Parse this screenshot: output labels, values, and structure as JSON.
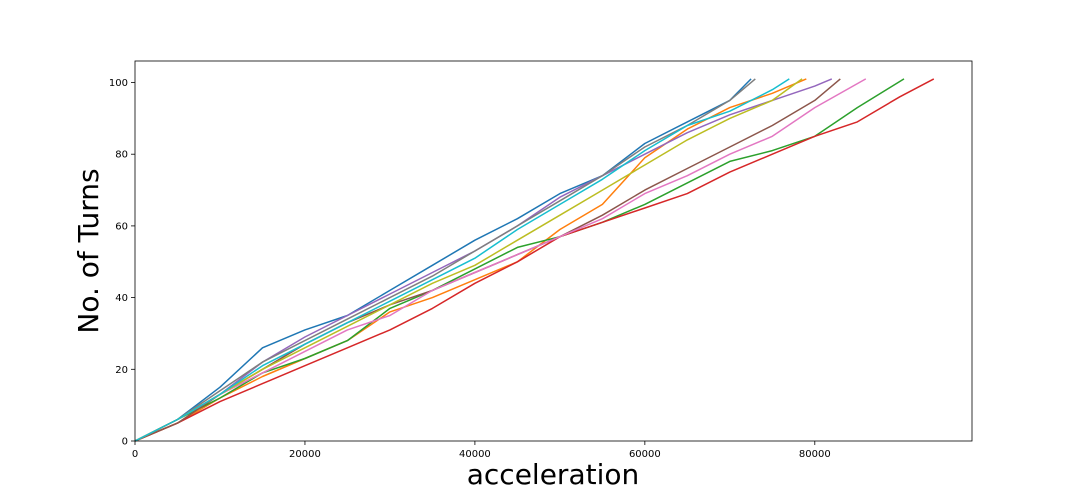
{
  "chart_data": {
    "type": "line",
    "title": "",
    "xlabel": "acceleration",
    "ylabel": "No. of Turns",
    "xlim": [
      0,
      98500
    ],
    "ylim": [
      0,
      106
    ],
    "x_ticks": [
      0,
      20000,
      40000,
      60000,
      80000
    ],
    "x_tick_labels": [
      "0",
      "20000",
      "40000",
      "60000",
      "80000"
    ],
    "y_ticks": [
      0,
      20,
      40,
      60,
      80,
      100
    ],
    "y_tick_labels": [
      "0",
      "20",
      "40",
      "60",
      "80",
      "100"
    ],
    "grid": false,
    "legend": "none",
    "series": [
      {
        "color": "#1f77b4",
        "points": [
          [
            0,
            0
          ],
          [
            5000,
            6
          ],
          [
            10000,
            15
          ],
          [
            15000,
            26
          ],
          [
            20000,
            31
          ],
          [
            25000,
            35
          ],
          [
            30000,
            42
          ],
          [
            35000,
            49
          ],
          [
            40000,
            56
          ],
          [
            45000,
            62
          ],
          [
            50000,
            69
          ],
          [
            55000,
            74
          ],
          [
            60000,
            83
          ],
          [
            65000,
            89
          ],
          [
            70000,
            95
          ],
          [
            72500,
            101
          ]
        ]
      },
      {
        "color": "#ff7f0e",
        "points": [
          [
            0,
            0
          ],
          [
            5000,
            5
          ],
          [
            10000,
            12
          ],
          [
            15000,
            18
          ],
          [
            20000,
            23
          ],
          [
            25000,
            28
          ],
          [
            30000,
            36
          ],
          [
            35000,
            40
          ],
          [
            40000,
            45
          ],
          [
            45000,
            50
          ],
          [
            50000,
            59
          ],
          [
            55000,
            66
          ],
          [
            60000,
            79
          ],
          [
            65000,
            87
          ],
          [
            70000,
            93
          ],
          [
            75000,
            97
          ],
          [
            79000,
            101
          ]
        ]
      },
      {
        "color": "#2ca02c",
        "points": [
          [
            0,
            0
          ],
          [
            5000,
            6
          ],
          [
            10000,
            12
          ],
          [
            15000,
            19
          ],
          [
            20000,
            23
          ],
          [
            25000,
            28
          ],
          [
            30000,
            37
          ],
          [
            35000,
            42
          ],
          [
            40000,
            48
          ],
          [
            45000,
            54
          ],
          [
            50000,
            57
          ],
          [
            55000,
            61
          ],
          [
            60000,
            66
          ],
          [
            65000,
            72
          ],
          [
            70000,
            78
          ],
          [
            75000,
            81
          ],
          [
            80000,
            85
          ],
          [
            85000,
            93
          ],
          [
            90500,
            101
          ]
        ]
      },
      {
        "color": "#d62728",
        "points": [
          [
            0,
            0
          ],
          [
            5000,
            5
          ],
          [
            10000,
            11
          ],
          [
            15000,
            16
          ],
          [
            20000,
            21
          ],
          [
            25000,
            26
          ],
          [
            30000,
            31
          ],
          [
            35000,
            37
          ],
          [
            40000,
            44
          ],
          [
            45000,
            50
          ],
          [
            50000,
            57
          ],
          [
            55000,
            61
          ],
          [
            60000,
            65
          ],
          [
            65000,
            69
          ],
          [
            70000,
            75
          ],
          [
            75000,
            80
          ],
          [
            80000,
            85
          ],
          [
            85000,
            89
          ],
          [
            90000,
            96
          ],
          [
            94000,
            101
          ]
        ]
      },
      {
        "color": "#9467bd",
        "points": [
          [
            0,
            0
          ],
          [
            5000,
            6
          ],
          [
            10000,
            13
          ],
          [
            15000,
            22
          ],
          [
            20000,
            29
          ],
          [
            25000,
            35
          ],
          [
            30000,
            41
          ],
          [
            35000,
            47
          ],
          [
            40000,
            53
          ],
          [
            45000,
            60
          ],
          [
            50000,
            68
          ],
          [
            55000,
            74
          ],
          [
            60000,
            80
          ],
          [
            65000,
            86
          ],
          [
            70000,
            91
          ],
          [
            75000,
            95
          ],
          [
            80000,
            99
          ],
          [
            82000,
            101
          ]
        ]
      },
      {
        "color": "#8c564b",
        "points": [
          [
            0,
            0
          ],
          [
            5000,
            5
          ],
          [
            10000,
            13
          ],
          [
            15000,
            20
          ],
          [
            20000,
            27
          ],
          [
            25000,
            33
          ],
          [
            30000,
            38
          ],
          [
            35000,
            42
          ],
          [
            40000,
            47
          ],
          [
            45000,
            52
          ],
          [
            50000,
            57
          ],
          [
            55000,
            63
          ],
          [
            60000,
            70
          ],
          [
            65000,
            76
          ],
          [
            70000,
            82
          ],
          [
            75000,
            88
          ],
          [
            80000,
            95
          ],
          [
            83000,
            101
          ]
        ]
      },
      {
        "color": "#e377c2",
        "points": [
          [
            0,
            0
          ],
          [
            5000,
            6
          ],
          [
            10000,
            13
          ],
          [
            15000,
            19
          ],
          [
            20000,
            25
          ],
          [
            25000,
            31
          ],
          [
            30000,
            35
          ],
          [
            35000,
            42
          ],
          [
            40000,
            47
          ],
          [
            45000,
            52
          ],
          [
            50000,
            57
          ],
          [
            55000,
            62
          ],
          [
            60000,
            69
          ],
          [
            65000,
            74
          ],
          [
            70000,
            80
          ],
          [
            75000,
            85
          ],
          [
            80000,
            93
          ],
          [
            86000,
            101
          ]
        ]
      },
      {
        "color": "#7f7f7f",
        "points": [
          [
            0,
            0
          ],
          [
            5000,
            6
          ],
          [
            10000,
            14
          ],
          [
            15000,
            22
          ],
          [
            20000,
            28
          ],
          [
            25000,
            34
          ],
          [
            30000,
            40
          ],
          [
            35000,
            46
          ],
          [
            40000,
            53
          ],
          [
            45000,
            60
          ],
          [
            50000,
            67
          ],
          [
            55000,
            74
          ],
          [
            60000,
            82
          ],
          [
            65000,
            88
          ],
          [
            70000,
            95
          ],
          [
            73000,
            101
          ]
        ]
      },
      {
        "color": "#bcbd22",
        "points": [
          [
            0,
            0
          ],
          [
            5000,
            6
          ],
          [
            10000,
            13
          ],
          [
            15000,
            20
          ],
          [
            20000,
            26
          ],
          [
            25000,
            32
          ],
          [
            30000,
            38
          ],
          [
            35000,
            44
          ],
          [
            40000,
            49
          ],
          [
            45000,
            56
          ],
          [
            50000,
            63
          ],
          [
            55000,
            70
          ],
          [
            60000,
            77
          ],
          [
            65000,
            84
          ],
          [
            70000,
            90
          ],
          [
            75000,
            95
          ],
          [
            78500,
            101
          ]
        ]
      },
      {
        "color": "#17becf",
        "points": [
          [
            0,
            0
          ],
          [
            5000,
            6
          ],
          [
            10000,
            13
          ],
          [
            15000,
            21
          ],
          [
            20000,
            27
          ],
          [
            25000,
            33
          ],
          [
            30000,
            39
          ],
          [
            35000,
            45
          ],
          [
            40000,
            51
          ],
          [
            45000,
            59
          ],
          [
            50000,
            66
          ],
          [
            55000,
            73
          ],
          [
            60000,
            81
          ],
          [
            65000,
            88
          ],
          [
            70000,
            92
          ],
          [
            75000,
            98
          ],
          [
            77000,
            101
          ]
        ]
      }
    ]
  }
}
